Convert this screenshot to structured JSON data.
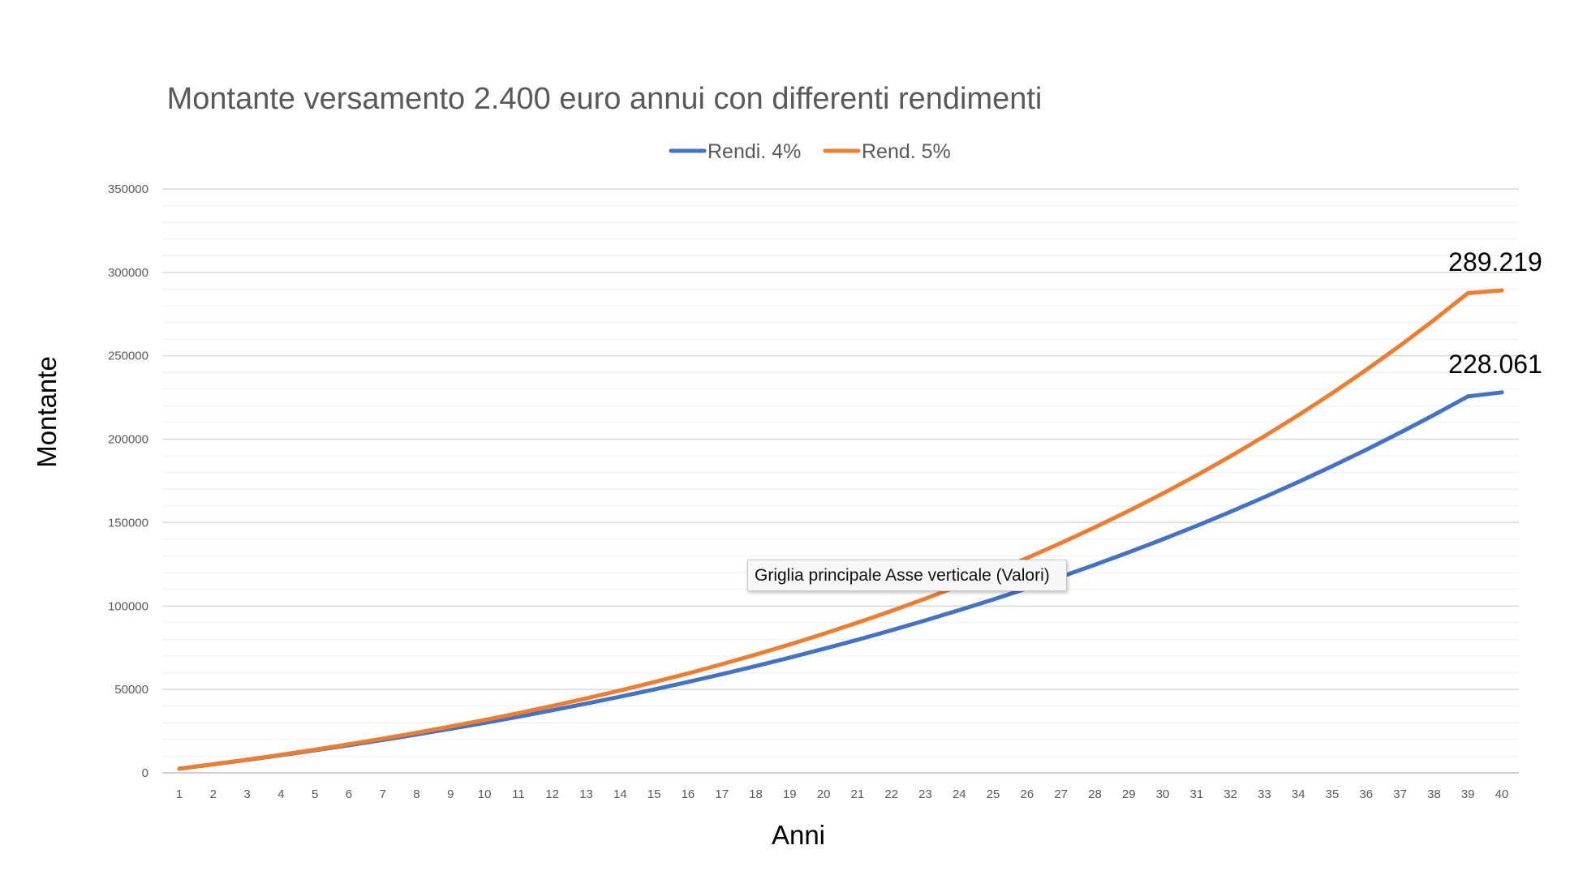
{
  "chart_data": {
    "type": "line",
    "title": "Montante versamento 2.400 euro annui con differenti rendimenti",
    "xlabel": "Anni",
    "ylabel": "Montante",
    "ylim": [
      0,
      350000
    ],
    "y_ticks": [
      0,
      50000,
      100000,
      150000,
      200000,
      250000,
      300000,
      350000
    ],
    "y_tick_labels": [
      "0",
      "50000",
      "100000",
      "150000",
      "200000",
      "250000",
      "300000",
      "350000"
    ],
    "grid": true,
    "legend_position": "top",
    "categories": [
      "1",
      "2",
      "3",
      "4",
      "5",
      "6",
      "7",
      "8",
      "9",
      "10",
      "11",
      "12",
      "13",
      "14",
      "15",
      "16",
      "17",
      "18",
      "19",
      "20",
      "21",
      "22",
      "23",
      "24",
      "25",
      "26",
      "27",
      "28",
      "29",
      "30",
      "31",
      "32",
      "33",
      "34",
      "35",
      "36",
      "37",
      "38",
      "39",
      "40"
    ],
    "series": [
      {
        "name": "Rendi. 4%",
        "color": "#4472c4",
        "values": [
          2496,
          5092,
          7792,
          10599,
          13519,
          16556,
          19714,
          22999,
          26414,
          29967,
          33661,
          37504,
          41500,
          45656,
          49978,
          54473,
          59148,
          64010,
          69066,
          74325,
          79794,
          85482,
          91397,
          97549,
          103947,
          110601,
          117521,
          124718,
          132203,
          139987,
          148083,
          156502,
          165259,
          174365,
          183836,
          193685,
          203929,
          214581,
          225660,
          228061
        ]
      },
      {
        "name": "Rend. 5%",
        "color": "#ed7d31",
        "values": [
          2520,
          5166,
          7944,
          10862,
          13925,
          17141,
          20518,
          24064,
          27787,
          31696,
          35801,
          40111,
          44637,
          49389,
          54378,
          59617,
          65118,
          70894,
          76959,
          83327,
          90013,
          97034,
          104406,
          112146,
          120273,
          128807,
          137767,
          147176,
          157054,
          167427,
          178319,
          189755,
          201762,
          214370,
          227609,
          241509,
          256105,
          271430,
          287521,
          289219
        ]
      }
    ],
    "data_labels": [
      {
        "series": "Rend. 5%",
        "category": "40",
        "text": "289.219"
      },
      {
        "series": "Rendi. 4%",
        "category": "40",
        "text": "228.061"
      }
    ]
  },
  "tooltip": {
    "text": "Griglia principale Asse verticale (Valori)"
  }
}
